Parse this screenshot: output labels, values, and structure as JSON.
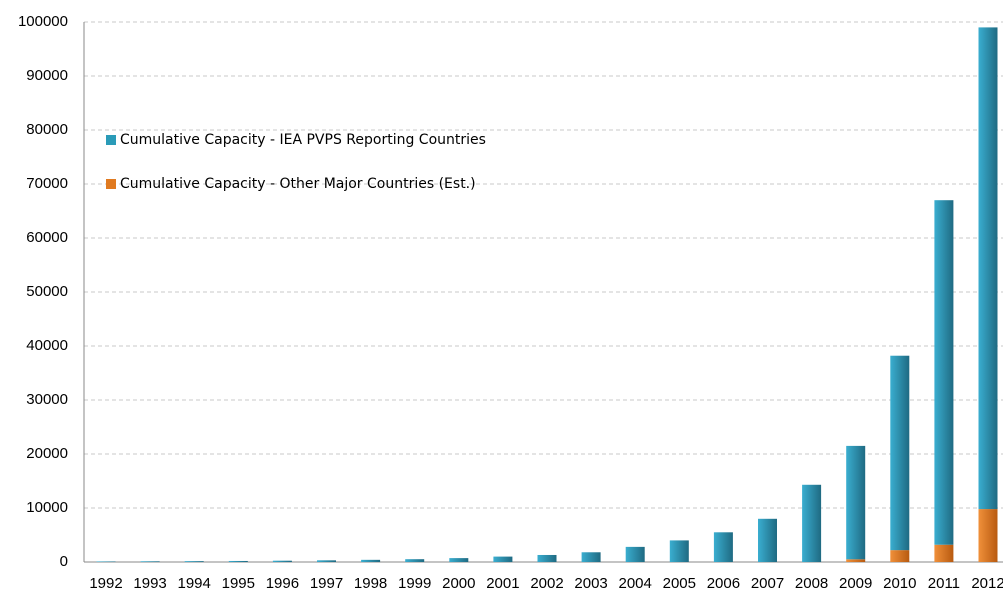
{
  "chart_data": {
    "type": "stacked_bar",
    "categories": [
      "1992",
      "1993",
      "1994",
      "1995",
      "1996",
      "1997",
      "1998",
      "1999",
      "2000",
      "2001",
      "2002",
      "2003",
      "2004",
      "2005",
      "2006",
      "2007",
      "2008",
      "2009",
      "2010",
      "2011",
      "2012"
    ],
    "series": [
      {
        "name": "Cumulative Capacity - IEA PVPS Reporting Countries",
        "color": "#2a9bb8",
        "values": [
          100,
          130,
          160,
          190,
          240,
          310,
          400,
          520,
          720,
          1000,
          1300,
          1800,
          2800,
          4000,
          5500,
          8000,
          14300,
          21000,
          36000,
          63800,
          89200
        ]
      },
      {
        "name": "Cumulative Capacity - Other Major Countries (Est.)",
        "color": "#e07a20",
        "values": [
          0,
          0,
          0,
          0,
          0,
          0,
          0,
          0,
          0,
          0,
          0,
          0,
          0,
          0,
          0,
          0,
          0,
          500,
          2200,
          3200,
          9800
        ]
      }
    ],
    "ylim": [
      0,
      100000
    ],
    "yticks": [
      0,
      10000,
      20000,
      30000,
      40000,
      50000,
      60000,
      70000,
      80000,
      90000,
      100000
    ],
    "grid": true,
    "legend": "upper-left"
  }
}
